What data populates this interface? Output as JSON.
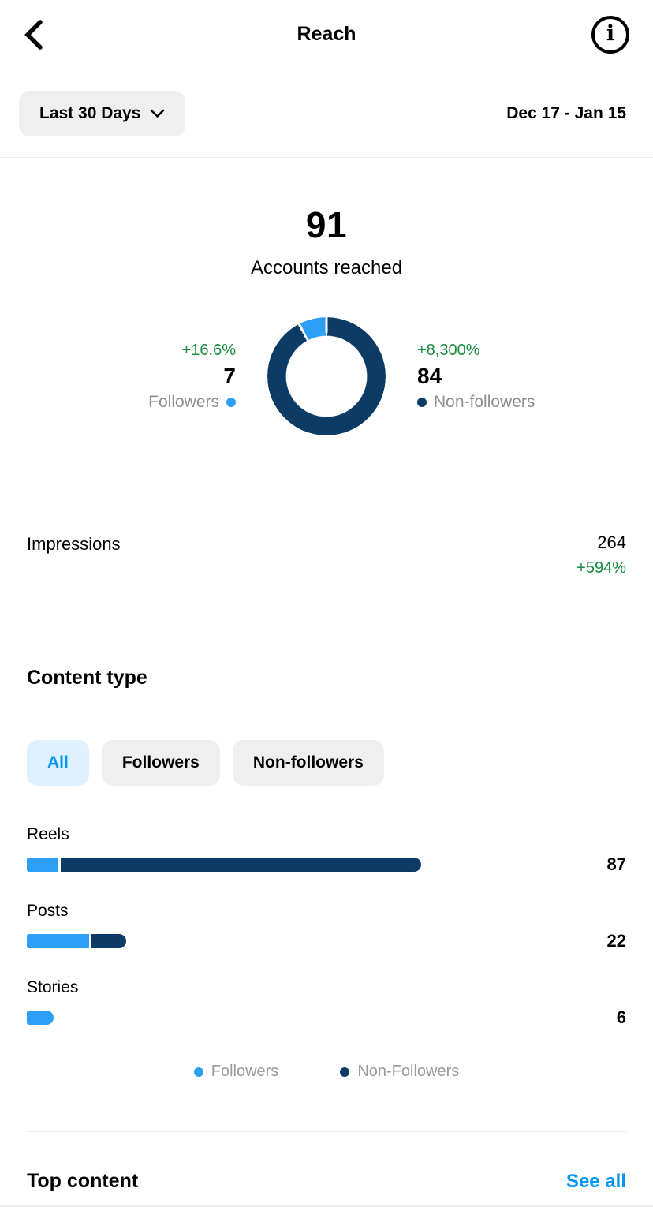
{
  "header": {
    "title": "Reach"
  },
  "filters": {
    "period_label": "Last 30 Days",
    "date_range": "Dec 17 - Jan 15"
  },
  "overview": {
    "value": "91",
    "label": "Accounts reached"
  },
  "reach_breakdown": {
    "followers": {
      "change": "+16.6%",
      "value": "7",
      "label": "Followers"
    },
    "non_followers": {
      "change": "+8,300%",
      "value": "84",
      "label": "Non-followers"
    }
  },
  "impressions": {
    "label": "Impressions",
    "value": "264",
    "change": "+594%"
  },
  "content_type": {
    "title": "Content type",
    "tabs": [
      {
        "label": "All",
        "selected": true
      },
      {
        "label": "Followers",
        "selected": false
      },
      {
        "label": "Non-followers",
        "selected": false
      }
    ],
    "legend": [
      {
        "label": "Followers",
        "color": "#2d9ff7"
      },
      {
        "label": "Non-Followers",
        "color": "#0c3b66"
      }
    ]
  },
  "top_content": {
    "title": "Top content",
    "action": "See all"
  },
  "colors": {
    "accent_blue": "#0095f6",
    "bar_blue": "#2d9ff7",
    "navy": "#0c3b66",
    "green": "#178b3e",
    "gray_text": "#8e8e8e",
    "gray_legend": "#9a9a9a",
    "pill_gray": "#efefef",
    "pill_blue_bg": "#dff0fe",
    "divider_dark": "#d9d9d9",
    "divider_light": "#ececec"
  },
  "chart_data": [
    {
      "type": "pie",
      "subtype": "donut",
      "title": "Accounts reached",
      "total": 91,
      "slices": [
        {
          "label": "Non-followers",
          "value": 84,
          "color": "#0c3b66"
        },
        {
          "label": "Followers",
          "value": 7,
          "color": "#2d9ff7"
        }
      ],
      "legend_position": "sides"
    },
    {
      "type": "bar",
      "orientation": "horizontal",
      "title": "Content type",
      "categories": [
        "Reels",
        "Posts",
        "Stories"
      ],
      "totals": [
        87,
        22,
        6
      ],
      "series": [
        {
          "name": "Followers",
          "color": "#2d9ff7",
          "values": [
            7,
            14,
            6
          ]
        },
        {
          "name": "Non-Followers",
          "color": "#0c3b66",
          "values": [
            80,
            8,
            0
          ]
        }
      ],
      "xmax": 87,
      "value_labels": [
        "87",
        "22",
        "6"
      ]
    }
  ]
}
